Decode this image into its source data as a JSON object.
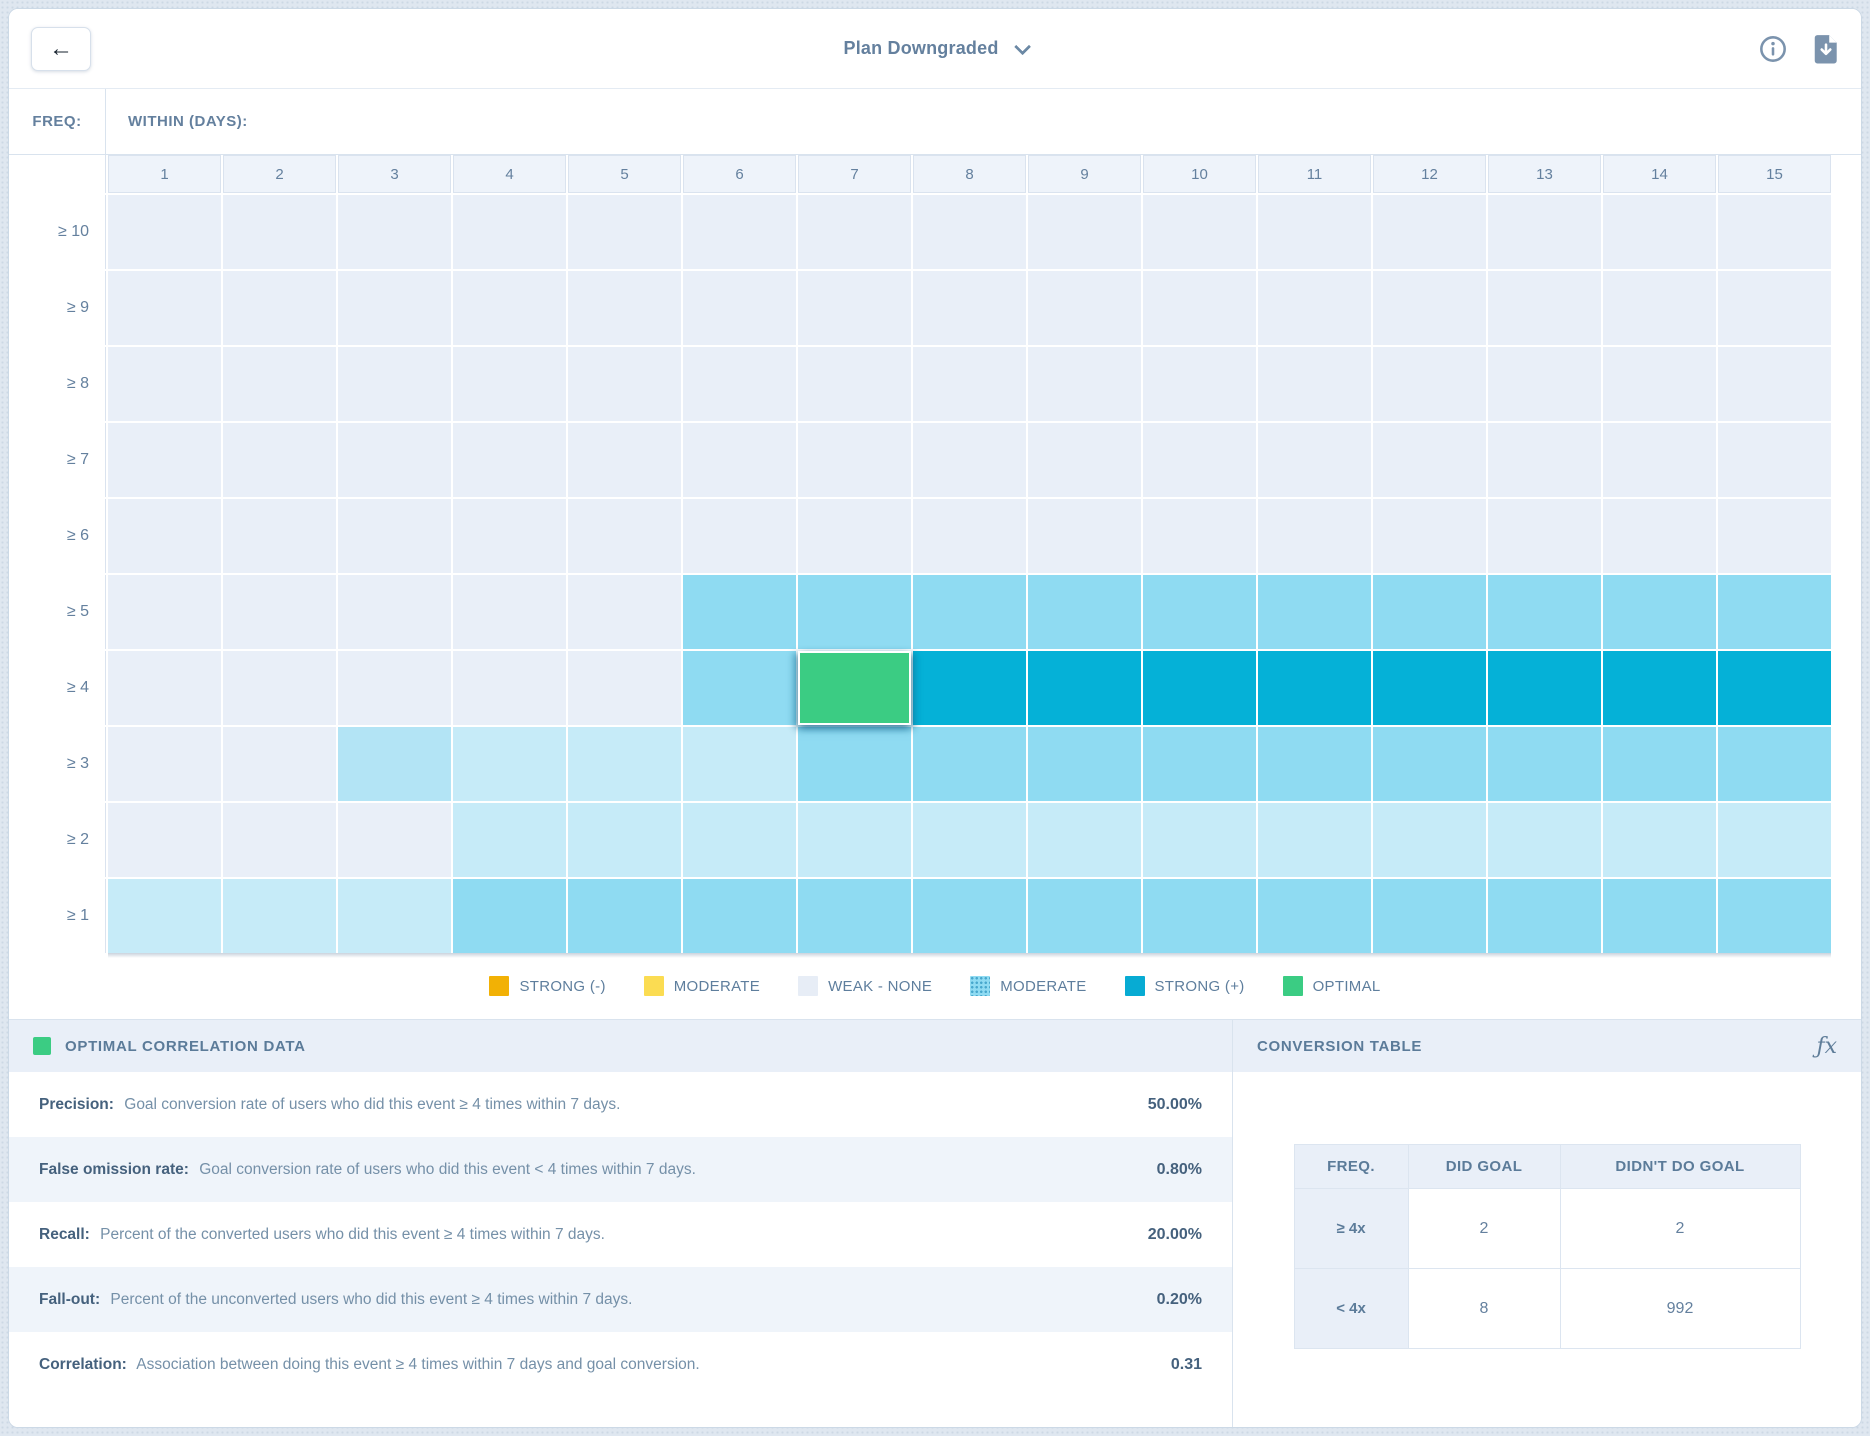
{
  "topbar": {
    "back_glyph": "←",
    "title": "Plan Downgraded"
  },
  "heatmap": {
    "freq_label": "FREQ:",
    "within_label": "WITHIN (DAYS):",
    "columns": [
      "1",
      "2",
      "3",
      "4",
      "5",
      "6",
      "7",
      "8",
      "9",
      "10",
      "11",
      "12",
      "13",
      "14",
      "15"
    ],
    "tier_colors": {
      "w": "#e9eff8",
      "l": "#c6ebf8",
      "d": "#b3e4f5",
      "m": "#8fdbf2",
      "s": "#05b1d7",
      "o": "#3bcc83"
    },
    "rows": [
      {
        "label": "≥ 10",
        "cells": [
          "w",
          "w",
          "w",
          "w",
          "w",
          "w",
          "w",
          "w",
          "w",
          "w",
          "w",
          "w",
          "w",
          "w",
          "w"
        ]
      },
      {
        "label": "≥ 9",
        "cells": [
          "w",
          "w",
          "w",
          "w",
          "w",
          "w",
          "w",
          "w",
          "w",
          "w",
          "w",
          "w",
          "w",
          "w",
          "w"
        ]
      },
      {
        "label": "≥ 8",
        "cells": [
          "w",
          "w",
          "w",
          "w",
          "w",
          "w",
          "w",
          "w",
          "w",
          "w",
          "w",
          "w",
          "w",
          "w",
          "w"
        ]
      },
      {
        "label": "≥ 7",
        "cells": [
          "w",
          "w",
          "w",
          "w",
          "w",
          "w",
          "w",
          "w",
          "w",
          "w",
          "w",
          "w",
          "w",
          "w",
          "w"
        ]
      },
      {
        "label": "≥ 6",
        "cells": [
          "w",
          "w",
          "w",
          "w",
          "w",
          "w",
          "w",
          "w",
          "w",
          "w",
          "w",
          "w",
          "w",
          "w",
          "w"
        ]
      },
      {
        "label": "≥ 5",
        "cells": [
          "w",
          "w",
          "w",
          "w",
          "w",
          "m",
          "m",
          "m",
          "m",
          "m",
          "m",
          "m",
          "m",
          "m",
          "m"
        ]
      },
      {
        "label": "≥ 4",
        "cells": [
          "w",
          "w",
          "w",
          "w",
          "w",
          "m",
          "o",
          "s",
          "s",
          "s",
          "s",
          "s",
          "s",
          "s",
          "s"
        ]
      },
      {
        "label": "≥ 3",
        "cells": [
          "w",
          "w",
          "d",
          "l",
          "l",
          "l",
          "m",
          "m",
          "m",
          "m",
          "m",
          "m",
          "m",
          "m",
          "m"
        ]
      },
      {
        "label": "≥ 2",
        "cells": [
          "w",
          "w",
          "w",
          "l",
          "l",
          "l",
          "l",
          "l",
          "l",
          "l",
          "l",
          "l",
          "l",
          "l",
          "l"
        ]
      },
      {
        "label": "≥ 1",
        "cells": [
          "l",
          "l",
          "l",
          "m",
          "m",
          "m",
          "m",
          "m",
          "m",
          "m",
          "m",
          "m",
          "m",
          "m",
          "m"
        ]
      }
    ],
    "optimal_cell": {
      "row": "≥ 4",
      "column": "7"
    }
  },
  "legend": {
    "items": [
      {
        "label": "STRONG (-)",
        "color": "#f2b105",
        "textured": false
      },
      {
        "label": "MODERATE",
        "color": "#fbdc52",
        "textured": false
      },
      {
        "label": "WEAK - NONE",
        "color": "#e7edf6",
        "textured": false
      },
      {
        "label": "MODERATE",
        "color": "#8fdbf2",
        "textured": true
      },
      {
        "label": "STRONG (+)",
        "color": "#07abd3",
        "textured": false
      },
      {
        "label": "OPTIMAL",
        "color": "#3bcc83",
        "textured": false
      }
    ]
  },
  "optimal_panel": {
    "title": "OPTIMAL CORRELATION DATA",
    "swatch_color": "#3bcc83",
    "metrics": [
      {
        "name": "Precision:",
        "desc": "Goal conversion rate of users who did this event ≥ 4 times within 7 days.",
        "value": "50.00%"
      },
      {
        "name": "False omission rate:",
        "desc": "Goal conversion rate of users who did this event < 4 times within 7 days.",
        "value": "0.80%"
      },
      {
        "name": "Recall:",
        "desc": "Percent of the converted users who did this event ≥ 4 times within 7 days.",
        "value": "20.00%"
      },
      {
        "name": "Fall-out:",
        "desc": "Percent of the unconverted users who did this event ≥ 4 times within 7 days.",
        "value": "0.20%"
      },
      {
        "name": "Correlation:",
        "desc": "Association between doing this event ≥ 4 times within 7 days and goal conversion.",
        "value": "0.31"
      }
    ]
  },
  "conversion_panel": {
    "title": "CONVERSION TABLE",
    "fx_glyph": "ƒx",
    "table": {
      "headers": [
        "FREQ.",
        "DID GOAL",
        "DIDN'T DO GOAL"
      ],
      "rows": [
        {
          "freq": "≥ 4x",
          "did": "2",
          "didnt": "2"
        },
        {
          "freq": "< 4x",
          "did": "8",
          "didnt": "992"
        }
      ]
    }
  }
}
